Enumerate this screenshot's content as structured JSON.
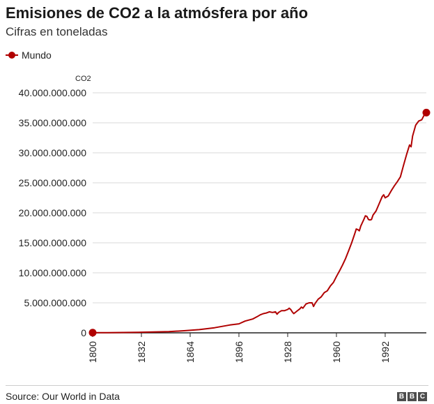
{
  "header": {
    "title": "Emisiones de CO2 a la atmósfera por año",
    "subtitle": "Cifras en toneladas"
  },
  "legend": {
    "label": "Mundo"
  },
  "footer": {
    "source": "Source: Our World in Data",
    "logo_letters": [
      "B",
      "B",
      "C"
    ]
  },
  "colors": {
    "series": "#b00000",
    "grid": "#d9d9d9",
    "axis": "#222222",
    "text": "#222222"
  },
  "chart_data": {
    "type": "line",
    "title": "Emisiones de CO2 a la atmósfera por año",
    "subtitle": "Cifras en toneladas",
    "xlabel": "",
    "ylabel": "CO2",
    "xlim": [
      1800,
      2019
    ],
    "ylim": [
      0,
      40000000000
    ],
    "grid": true,
    "legend_position": "top-left",
    "x_ticks": [
      1800,
      1832,
      1864,
      1896,
      1928,
      1960,
      1992
    ],
    "x_tick_labels": [
      "1800",
      "1832",
      "1864",
      "1896",
      "1928",
      "1960",
      "1992"
    ],
    "y_ticks": [
      0,
      5000000000,
      10000000000,
      15000000000,
      20000000000,
      25000000000,
      30000000000,
      35000000000,
      40000000000
    ],
    "y_tick_labels": [
      "0",
      "5.000.000.000",
      "10.000.000.000",
      "15.000.000.000",
      "20.000.000.000",
      "25.000.000.000",
      "30.000.000.000",
      "35.000.000.000",
      "40.000.000.000"
    ],
    "series": [
      {
        "name": "Mundo",
        "x": [
          1800,
          1810,
          1820,
          1830,
          1840,
          1850,
          1860,
          1870,
          1880,
          1890,
          1896,
          1900,
          1905,
          1908,
          1910,
          1912,
          1914,
          1916,
          1918,
          1920,
          1921,
          1922,
          1924,
          1926,
          1928,
          1929,
          1930,
          1931,
          1932,
          1934,
          1936,
          1937,
          1938,
          1940,
          1942,
          1944,
          1945,
          1946,
          1948,
          1950,
          1952,
          1954,
          1956,
          1958,
          1960,
          1962,
          1964,
          1966,
          1968,
          1970,
          1972,
          1973,
          1974,
          1975,
          1976,
          1978,
          1979,
          1980,
          1981,
          1982,
          1983,
          1984,
          1986,
          1988,
          1990,
          1991,
          1992,
          1994,
          1996,
          1998,
          2000,
          2002,
          2004,
          2006,
          2008,
          2009,
          2010,
          2012,
          2014,
          2016,
          2018,
          2019
        ],
        "y": [
          28000000,
          40000000,
          55000000,
          90000000,
          150000000,
          200000000,
          350000000,
          530000000,
          850000000,
          1300000000,
          1500000000,
          1950000000,
          2300000000,
          2700000000,
          3000000000,
          3200000000,
          3300000000,
          3500000000,
          3400000000,
          3500000000,
          3100000000,
          3400000000,
          3700000000,
          3700000000,
          3900000000,
          4100000000,
          3900000000,
          3500000000,
          3200000000,
          3600000000,
          4000000000,
          4300000000,
          4100000000,
          4800000000,
          5000000000,
          5000000000,
          4400000000,
          4900000000,
          5600000000,
          6000000000,
          6700000000,
          7000000000,
          7800000000,
          8400000000,
          9400000000,
          10300000000,
          11300000000,
          12400000000,
          13700000000,
          15000000000,
          16500000000,
          17300000000,
          17200000000,
          17000000000,
          17800000000,
          18900000000,
          19500000000,
          19400000000,
          18900000000,
          18800000000,
          18900000000,
          19600000000,
          20300000000,
          21500000000,
          22700000000,
          23000000000,
          22500000000,
          22800000000,
          23700000000,
          24500000000,
          25200000000,
          26000000000,
          27900000000,
          29700000000,
          31300000000,
          31000000000,
          32800000000,
          34600000000,
          35300000000,
          35500000000,
          36500000000,
          36700000000
        ]
      }
    ],
    "end_marker": {
      "x": 2019,
      "y": 36700000000
    },
    "start_marker": {
      "x": 1800,
      "y": 28000000
    }
  }
}
